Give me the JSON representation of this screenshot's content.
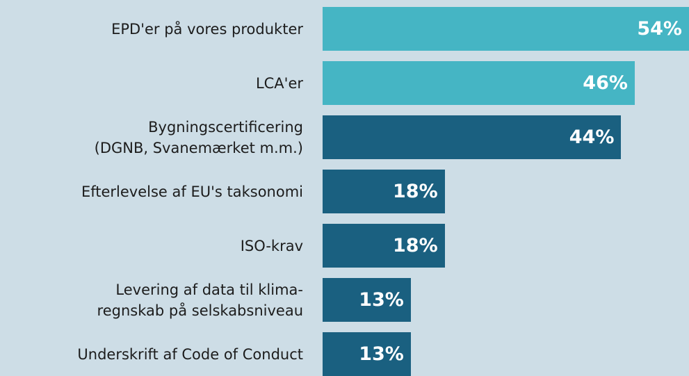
{
  "chart_data": {
    "type": "bar",
    "orientation": "horizontal",
    "categories": [
      "EPD'er på vores produkter",
      "LCA'er",
      "Bygningscertificering\n(DGNB, Svanemærket m.m.)",
      "Efterlevelse af EU's taksonomi",
      "ISO-krav",
      "Levering af data til klima-\nregnskab på selskabsniveau",
      "Underskrift af Code of Conduct"
    ],
    "values": [
      54,
      46,
      44,
      18,
      18,
      13,
      13
    ],
    "value_labels": [
      "54%",
      "46%",
      "44%",
      "18%",
      "18%",
      "13%",
      "13%"
    ],
    "colors": [
      "#45b5c4",
      "#45b5c4",
      "#1a6080",
      "#1a6080",
      "#1a6080",
      "#1a6080",
      "#1a6080"
    ]
  }
}
